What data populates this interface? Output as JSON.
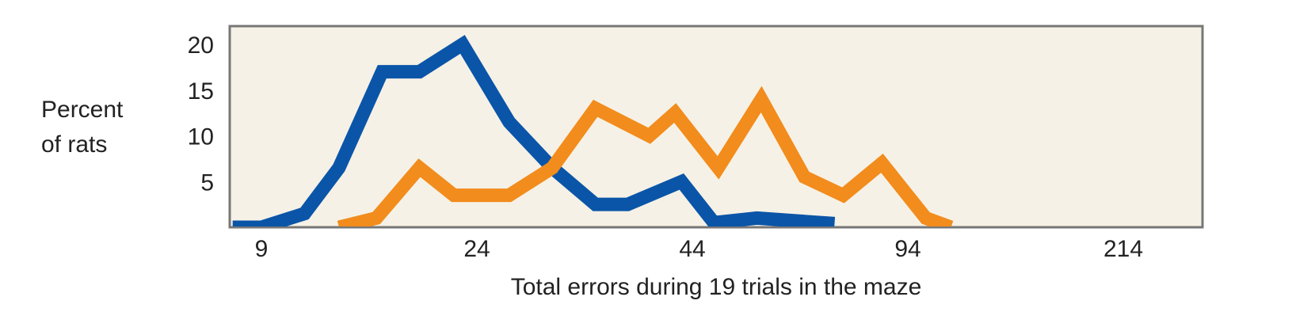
{
  "chart_data": {
    "type": "line",
    "title": "",
    "xlabel": "Total errors during 19 trials in the maze",
    "ylabel_lines": [
      "Percent",
      "of rats"
    ],
    "x_ticks": [
      9,
      24,
      44,
      94,
      214
    ],
    "x_scale": "nonlinear (piecewise, evenly spaced ticks)",
    "y_ticks": [
      5,
      10,
      15,
      20
    ],
    "ylim": [
      0,
      22
    ],
    "grid": false,
    "legend": "none",
    "background_color": "#f5f1e6",
    "series": [
      {
        "color": "#0a55a8",
        "points": [
          [
            7,
            0
          ],
          [
            9,
            0
          ],
          [
            12,
            1.5
          ],
          [
            14.4,
            6.5
          ],
          [
            17.4,
            17
          ],
          [
            20,
            17
          ],
          [
            23,
            20
          ],
          [
            27,
            11.5
          ],
          [
            31,
            6.5
          ],
          [
            35,
            2.5
          ],
          [
            38,
            2.5
          ],
          [
            43,
            5
          ],
          [
            49,
            0.5
          ],
          [
            59,
            1
          ],
          [
            77,
            0.4
          ]
        ]
      },
      {
        "color": "#f28c1c",
        "points": [
          [
            14.4,
            0
          ],
          [
            17,
            1
          ],
          [
            20,
            6.5
          ],
          [
            22.4,
            3.5
          ],
          [
            27,
            3.5
          ],
          [
            31,
            6.5
          ],
          [
            35,
            13
          ],
          [
            40,
            10
          ],
          [
            42.4,
            12.5
          ],
          [
            50,
            6.5
          ],
          [
            60,
            14
          ],
          [
            70,
            5.5
          ],
          [
            79,
            3.5
          ],
          [
            88,
            7
          ],
          [
            104,
            1
          ],
          [
            118,
            0
          ]
        ]
      }
    ]
  }
}
